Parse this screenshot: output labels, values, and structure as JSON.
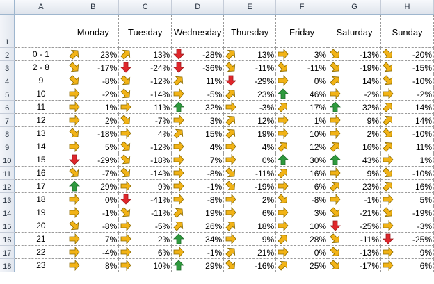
{
  "columns": [
    "A",
    "B",
    "C",
    "D",
    "E",
    "F",
    "G",
    "H"
  ],
  "days": [
    "Monday",
    "Tuesday",
    "Wednesday",
    "Thursday",
    "Friday",
    "Saturday",
    "Sunday"
  ],
  "icon_colors": {
    "up": "#2e9a3e",
    "down": "#e0262b",
    "diag": "#f2b316",
    "outline": "#8a6a00"
  },
  "rows": [
    {
      "num": "2",
      "label": "0 - 1",
      "cells": [
        [
          "diag-up",
          "23%"
        ],
        [
          "diag-up",
          "13%"
        ],
        [
          "down",
          "-28%"
        ],
        [
          "diag-up",
          "13%"
        ],
        [
          "right",
          "3%"
        ],
        [
          "diag-down",
          "-13%"
        ],
        [
          "diag-down",
          "-20%"
        ]
      ]
    },
    {
      "num": "3",
      "label": "2 - 8",
      "cells": [
        [
          "diag-down",
          "-17%"
        ],
        [
          "down",
          "-24%"
        ],
        [
          "down",
          "-36%"
        ],
        [
          "diag-down",
          "-11%"
        ],
        [
          "diag-down",
          "-11%"
        ],
        [
          "diag-down",
          "-19%"
        ],
        [
          "diag-down",
          "-15%"
        ]
      ]
    },
    {
      "num": "4",
      "label": "9",
      "cells": [
        [
          "diag-down",
          "-8%"
        ],
        [
          "diag-down",
          "-12%"
        ],
        [
          "diag-up",
          "11%"
        ],
        [
          "down",
          "-29%"
        ],
        [
          "right",
          "0%"
        ],
        [
          "diag-up",
          "14%"
        ],
        [
          "diag-down",
          "-10%"
        ]
      ]
    },
    {
      "num": "5",
      "label": "10",
      "cells": [
        [
          "right",
          "-2%"
        ],
        [
          "diag-down",
          "-14%"
        ],
        [
          "right",
          "-5%"
        ],
        [
          "diag-up",
          "23%"
        ],
        [
          "up",
          "46%"
        ],
        [
          "right",
          "-2%"
        ],
        [
          "right",
          "-2%"
        ]
      ]
    },
    {
      "num": "6",
      "label": "11",
      "cells": [
        [
          "right",
          "1%"
        ],
        [
          "right",
          "11%"
        ],
        [
          "up",
          "32%"
        ],
        [
          "right",
          "-3%"
        ],
        [
          "diag-up",
          "17%"
        ],
        [
          "up",
          "32%"
        ],
        [
          "diag-up",
          "14%"
        ]
      ]
    },
    {
      "num": "7",
      "label": "12",
      "cells": [
        [
          "right",
          "2%"
        ],
        [
          "diag-down",
          "-7%"
        ],
        [
          "right",
          "3%"
        ],
        [
          "diag-up",
          "12%"
        ],
        [
          "right",
          "1%"
        ],
        [
          "right",
          "9%"
        ],
        [
          "diag-up",
          "14%"
        ]
      ]
    },
    {
      "num": "8",
      "label": "13",
      "cells": [
        [
          "diag-down",
          "-18%"
        ],
        [
          "right",
          "4%"
        ],
        [
          "diag-up",
          "15%"
        ],
        [
          "diag-up",
          "19%"
        ],
        [
          "right",
          "10%"
        ],
        [
          "right",
          "2%"
        ],
        [
          "diag-down",
          "-10%"
        ]
      ]
    },
    {
      "num": "9",
      "label": "14",
      "cells": [
        [
          "right",
          "5%"
        ],
        [
          "diag-down",
          "-12%"
        ],
        [
          "right",
          "4%"
        ],
        [
          "right",
          "4%"
        ],
        [
          "diag-up",
          "12%"
        ],
        [
          "diag-up",
          "16%"
        ],
        [
          "diag-up",
          "11%"
        ]
      ]
    },
    {
      "num": "10",
      "label": "15",
      "cells": [
        [
          "down",
          "-29%"
        ],
        [
          "diag-down",
          "-18%"
        ],
        [
          "right",
          "7%"
        ],
        [
          "right",
          "0%"
        ],
        [
          "up",
          "30%"
        ],
        [
          "up",
          "43%"
        ],
        [
          "right",
          "1%"
        ]
      ]
    },
    {
      "num": "11",
      "label": "16",
      "cells": [
        [
          "diag-down",
          "-7%"
        ],
        [
          "diag-down",
          "-14%"
        ],
        [
          "right",
          "-8%"
        ],
        [
          "diag-down",
          "-11%"
        ],
        [
          "diag-up",
          "16%"
        ],
        [
          "right",
          "9%"
        ],
        [
          "diag-down",
          "-10%"
        ]
      ]
    },
    {
      "num": "12",
      "label": "17",
      "cells": [
        [
          "up",
          "29%"
        ],
        [
          "right",
          "9%"
        ],
        [
          "right",
          "-1%"
        ],
        [
          "diag-down",
          "-19%"
        ],
        [
          "right",
          "6%"
        ],
        [
          "diag-up",
          "23%"
        ],
        [
          "diag-up",
          "16%"
        ]
      ]
    },
    {
      "num": "13",
      "label": "18",
      "cells": [
        [
          "right",
          "0%"
        ],
        [
          "down",
          "-41%"
        ],
        [
          "right",
          "-8%"
        ],
        [
          "right",
          "2%"
        ],
        [
          "diag-down",
          "-8%"
        ],
        [
          "right",
          "-1%"
        ],
        [
          "right",
          "5%"
        ]
      ]
    },
    {
      "num": "14",
      "label": "19",
      "cells": [
        [
          "right",
          "-1%"
        ],
        [
          "diag-down",
          "-11%"
        ],
        [
          "diag-up",
          "19%"
        ],
        [
          "right",
          "6%"
        ],
        [
          "right",
          "3%"
        ],
        [
          "diag-down",
          "-21%"
        ],
        [
          "diag-down",
          "-19%"
        ]
      ]
    },
    {
      "num": "15",
      "label": "20",
      "cells": [
        [
          "diag-down",
          "-8%"
        ],
        [
          "right",
          "-5%"
        ],
        [
          "diag-up",
          "26%"
        ],
        [
          "diag-up",
          "18%"
        ],
        [
          "right",
          "10%"
        ],
        [
          "down",
          "-25%"
        ],
        [
          "right",
          "-3%"
        ]
      ]
    },
    {
      "num": "16",
      "label": "21",
      "cells": [
        [
          "right",
          "7%"
        ],
        [
          "right",
          "2%"
        ],
        [
          "up",
          "34%"
        ],
        [
          "right",
          "9%"
        ],
        [
          "diag-up",
          "28%"
        ],
        [
          "diag-down",
          "-11%"
        ],
        [
          "down",
          "-25%"
        ]
      ]
    },
    {
      "num": "17",
      "label": "22",
      "cells": [
        [
          "right",
          "-4%"
        ],
        [
          "right",
          "6%"
        ],
        [
          "right",
          "-1%"
        ],
        [
          "diag-up",
          "21%"
        ],
        [
          "right",
          "0%"
        ],
        [
          "diag-down",
          "-13%"
        ],
        [
          "right",
          "9%"
        ]
      ]
    },
    {
      "num": "18",
      "label": "23",
      "cells": [
        [
          "right",
          "8%"
        ],
        [
          "right",
          "10%"
        ],
        [
          "up",
          "29%"
        ],
        [
          "diag-down",
          "-16%"
        ],
        [
          "diag-up",
          "25%"
        ],
        [
          "diag-down",
          "-17%"
        ],
        [
          "right",
          "6%"
        ]
      ]
    }
  ]
}
